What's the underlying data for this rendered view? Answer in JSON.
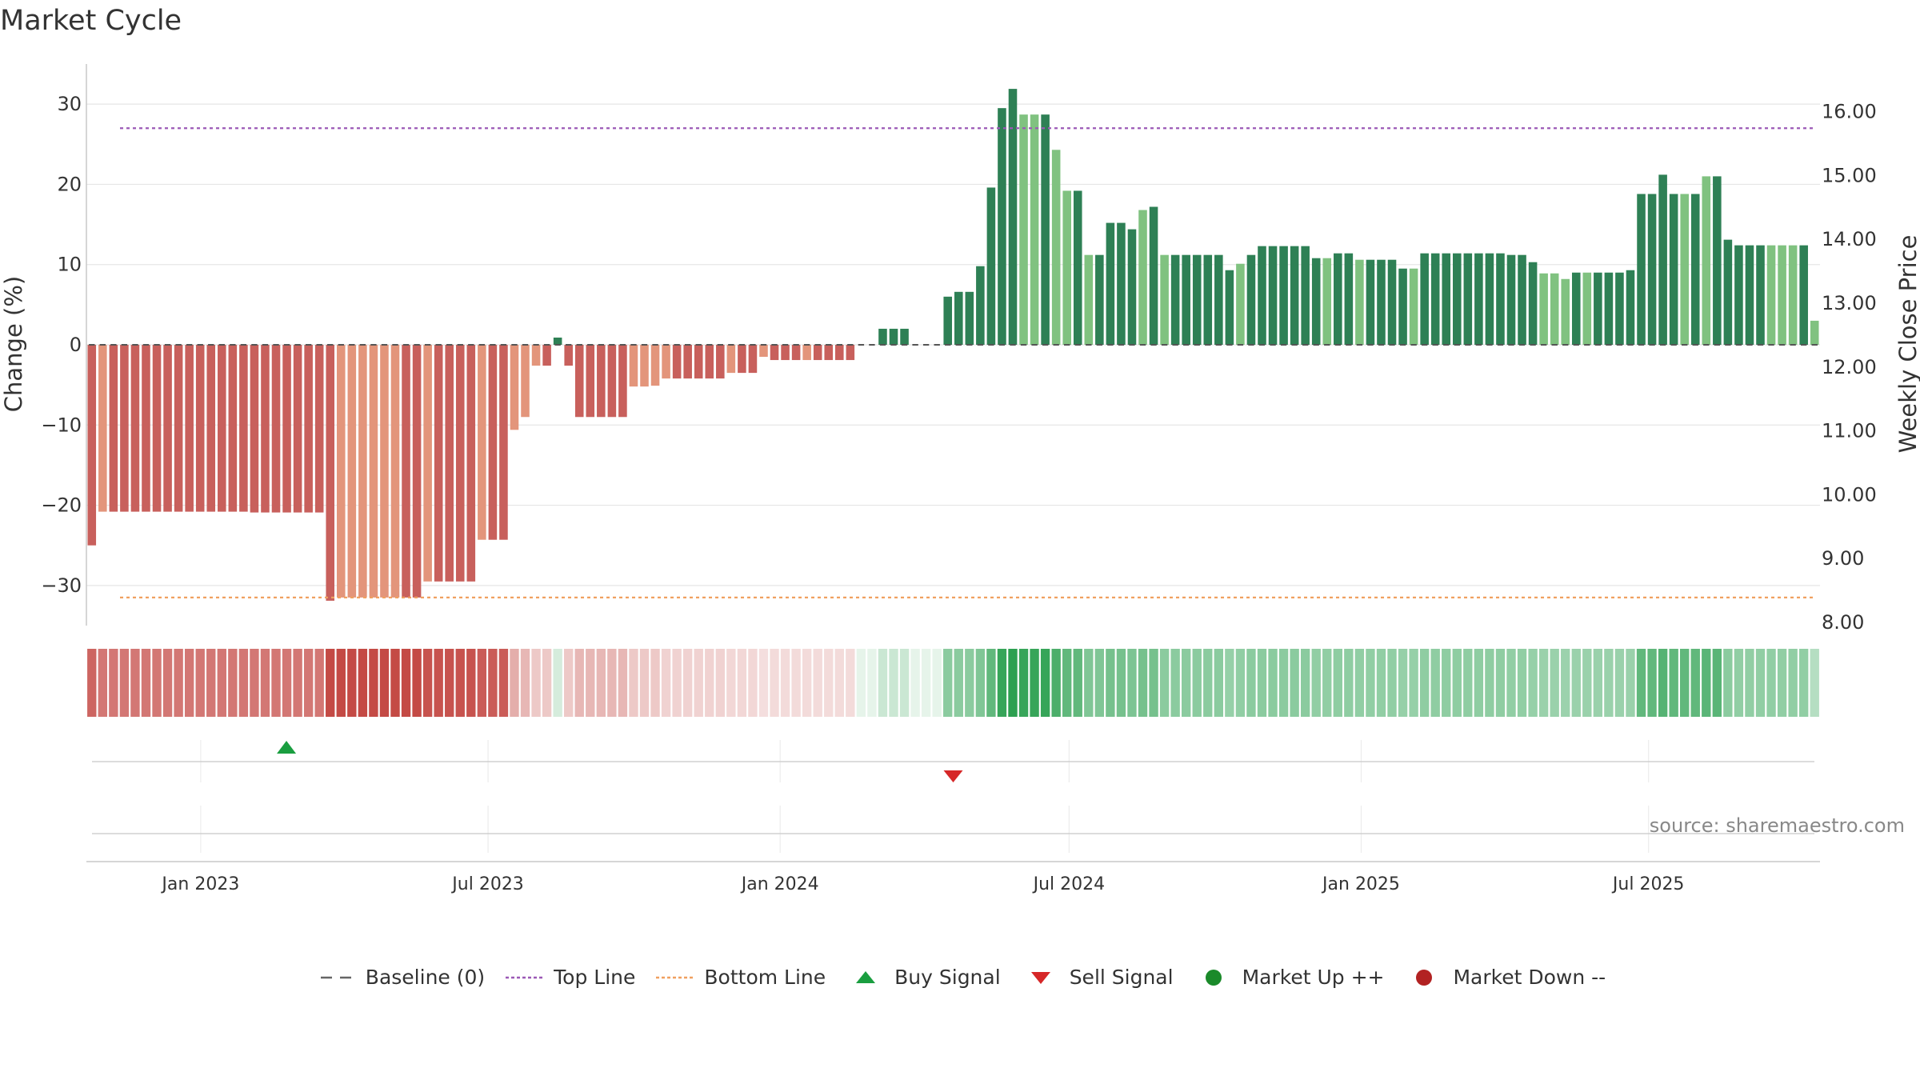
{
  "title": "Market Cycle",
  "source": "source: sharemaestro.com",
  "colors": {
    "bear_strong": "#c8605c",
    "bear_light": "#e3957b",
    "bull_strong": "#2e8055",
    "bull_light": "#80c280",
    "top_line": "#9b59b6",
    "bottom_line": "#f0a060",
    "buy": "#1a9e40",
    "sell": "#d62728",
    "market_up": "#1a8a2a",
    "market_down": "#b22222"
  },
  "legend": [
    {
      "key": "baseline",
      "label": "Baseline (0)"
    },
    {
      "key": "top",
      "label": "Top Line"
    },
    {
      "key": "bottom",
      "label": "Bottom Line"
    },
    {
      "key": "buy",
      "label": "Buy Signal"
    },
    {
      "key": "sell",
      "label": "Sell Signal"
    },
    {
      "key": "up",
      "label": "Market Up ++"
    },
    {
      "key": "down",
      "label": "Market Down --"
    }
  ],
  "chart_data": {
    "type": "bar",
    "ylabel": "Change (%)",
    "y2label": "Weekly Close Price",
    "ylim": [
      -35,
      35
    ],
    "y2lim": [
      8.0,
      16.8
    ],
    "yticks": [
      -30,
      -20,
      -10,
      0,
      10,
      20,
      30
    ],
    "ytick_labels": [
      "−30",
      "−20",
      "−10",
      "0",
      "10",
      "20",
      "30"
    ],
    "y2ticks": [
      8,
      9,
      10,
      11,
      12,
      13,
      14,
      15,
      16
    ],
    "y2tick_labels": [
      "8.00",
      "9.00",
      "10.00",
      "11.00",
      "12.00",
      "13.00",
      "14.00",
      "15.00",
      "16.00"
    ],
    "x_start": "2022-10-21",
    "x_end": "2025-10-17",
    "xticks": [
      "2023-01-01",
      "2023-07-01",
      "2024-01-01",
      "2024-07-01",
      "2025-01-01",
      "2025-07-01"
    ],
    "xtick_labels": [
      "Jan 2023",
      "Jul 2023",
      "Jan 2024",
      "Jul 2024",
      "Jan 2025",
      "Jul 2025"
    ],
    "top_line": 27,
    "bottom_line": -31.5,
    "baseline": 0,
    "values": [
      -25,
      -20.8,
      -20.8,
      -20.8,
      -20.8,
      -20.8,
      -20.8,
      -20.8,
      -20.8,
      -20.8,
      -20.8,
      -20.8,
      -20.8,
      -20.8,
      -20.8,
      -20.9,
      -20.9,
      -20.9,
      -20.9,
      -20.9,
      -20.9,
      -20.9,
      -31.9,
      -31.5,
      -31.5,
      -31.5,
      -31.5,
      -31.5,
      -31.5,
      -31.5,
      -31.5,
      -29.5,
      -29.5,
      -29.5,
      -29.5,
      -29.5,
      -24.3,
      -24.3,
      -24.3,
      -10.6,
      -9,
      -2.6,
      -2.6,
      0.9,
      -2.6,
      -9,
      -9,
      -9,
      -9,
      -9,
      -5.2,
      -5.2,
      -5.1,
      -4.2,
      -4.2,
      -4.2,
      -4.2,
      -4.2,
      -4.2,
      -3.5,
      -3.5,
      -3.5,
      -1.5,
      -1.9,
      -1.9,
      -1.9,
      -1.9,
      -1.9,
      -1.9,
      -1.9,
      -1.9,
      0,
      0,
      2,
      2,
      2,
      0,
      0,
      0,
      6,
      6.6,
      6.6,
      9.8,
      19.6,
      29.5,
      31.9,
      28.7,
      28.7,
      28.7,
      24.3,
      19.2,
      19.2,
      11.2,
      11.2,
      15.2,
      15.2,
      14.4,
      16.8,
      17.2,
      11.2,
      11.2,
      11.2,
      11.2,
      11.2,
      11.2,
      9.3,
      10.1,
      11.2,
      12.3,
      12.3,
      12.3,
      12.3,
      12.3,
      10.8,
      10.8,
      11.4,
      11.4,
      10.6,
      10.6,
      10.6,
      10.6,
      9.5,
      9.5,
      11.4,
      11.4,
      11.4,
      11.4,
      11.4,
      11.4,
      11.4,
      11.4,
      11.2,
      11.2,
      10.3,
      8.9,
      8.9,
      8.2,
      9,
      9,
      9,
      9,
      9,
      9.3,
      18.8,
      18.8,
      21.2,
      18.8,
      18.8,
      18.8,
      21,
      21,
      13.1,
      12.4,
      12.4,
      12.4,
      12.4,
      12.4,
      12.4,
      12.4,
      3
    ],
    "intensity": [
      0.85,
      0.75,
      0.75,
      0.75,
      0.75,
      0.75,
      0.75,
      0.75,
      0.75,
      0.75,
      0.75,
      0.75,
      0.75,
      0.75,
      0.75,
      0.75,
      0.75,
      0.75,
      0.75,
      0.75,
      0.75,
      0.75,
      1,
      1,
      1,
      1,
      1,
      1,
      1,
      1,
      1,
      0.95,
      0.95,
      0.95,
      0.95,
      0.95,
      0.9,
      0.9,
      0.9,
      0.45,
      0.4,
      0.3,
      0.3,
      0.2,
      0.3,
      0.4,
      0.4,
      0.4,
      0.4,
      0.4,
      0.3,
      0.3,
      0.3,
      0.25,
      0.25,
      0.25,
      0.25,
      0.25,
      0.25,
      0.22,
      0.22,
      0.22,
      0.18,
      0.2,
      0.2,
      0.2,
      0.2,
      0.2,
      0.2,
      0.2,
      0.2,
      0.2,
      0.2,
      0.25,
      0.25,
      0.25,
      0.25,
      0.25,
      0.25,
      0.55,
      0.55,
      0.55,
      0.6,
      0.75,
      0.95,
      1,
      0.95,
      0.95,
      0.95,
      0.85,
      0.75,
      0.75,
      0.6,
      0.6,
      0.65,
      0.65,
      0.62,
      0.65,
      0.65,
      0.55,
      0.55,
      0.55,
      0.55,
      0.55,
      0.55,
      0.5,
      0.52,
      0.55,
      0.55,
      0.55,
      0.55,
      0.55,
      0.55,
      0.52,
      0.52,
      0.53,
      0.53,
      0.52,
      0.52,
      0.52,
      0.52,
      0.5,
      0.5,
      0.53,
      0.53,
      0.53,
      0.53,
      0.53,
      0.53,
      0.53,
      0.53,
      0.52,
      0.52,
      0.5,
      0.48,
      0.48,
      0.47,
      0.48,
      0.48,
      0.48,
      0.48,
      0.48,
      0.48,
      0.75,
      0.75,
      0.8,
      0.75,
      0.75,
      0.75,
      0.78,
      0.78,
      0.55,
      0.52,
      0.52,
      0.52,
      0.52,
      0.52,
      0.52,
      0.52,
      0.35
    ],
    "light_indices": [
      1,
      23,
      24,
      25,
      26,
      27,
      28,
      31,
      36,
      39,
      40,
      41,
      50,
      51,
      52,
      53,
      59,
      62,
      66,
      86,
      87,
      89,
      90,
      92,
      97,
      99,
      106,
      114,
      117,
      122,
      134,
      135,
      136,
      138,
      147,
      149,
      155,
      156,
      157,
      159,
      160
    ],
    "buy_signals": [
      "2023-02-24"
    ],
    "sell_signals": [
      "2024-04-19"
    ]
  }
}
